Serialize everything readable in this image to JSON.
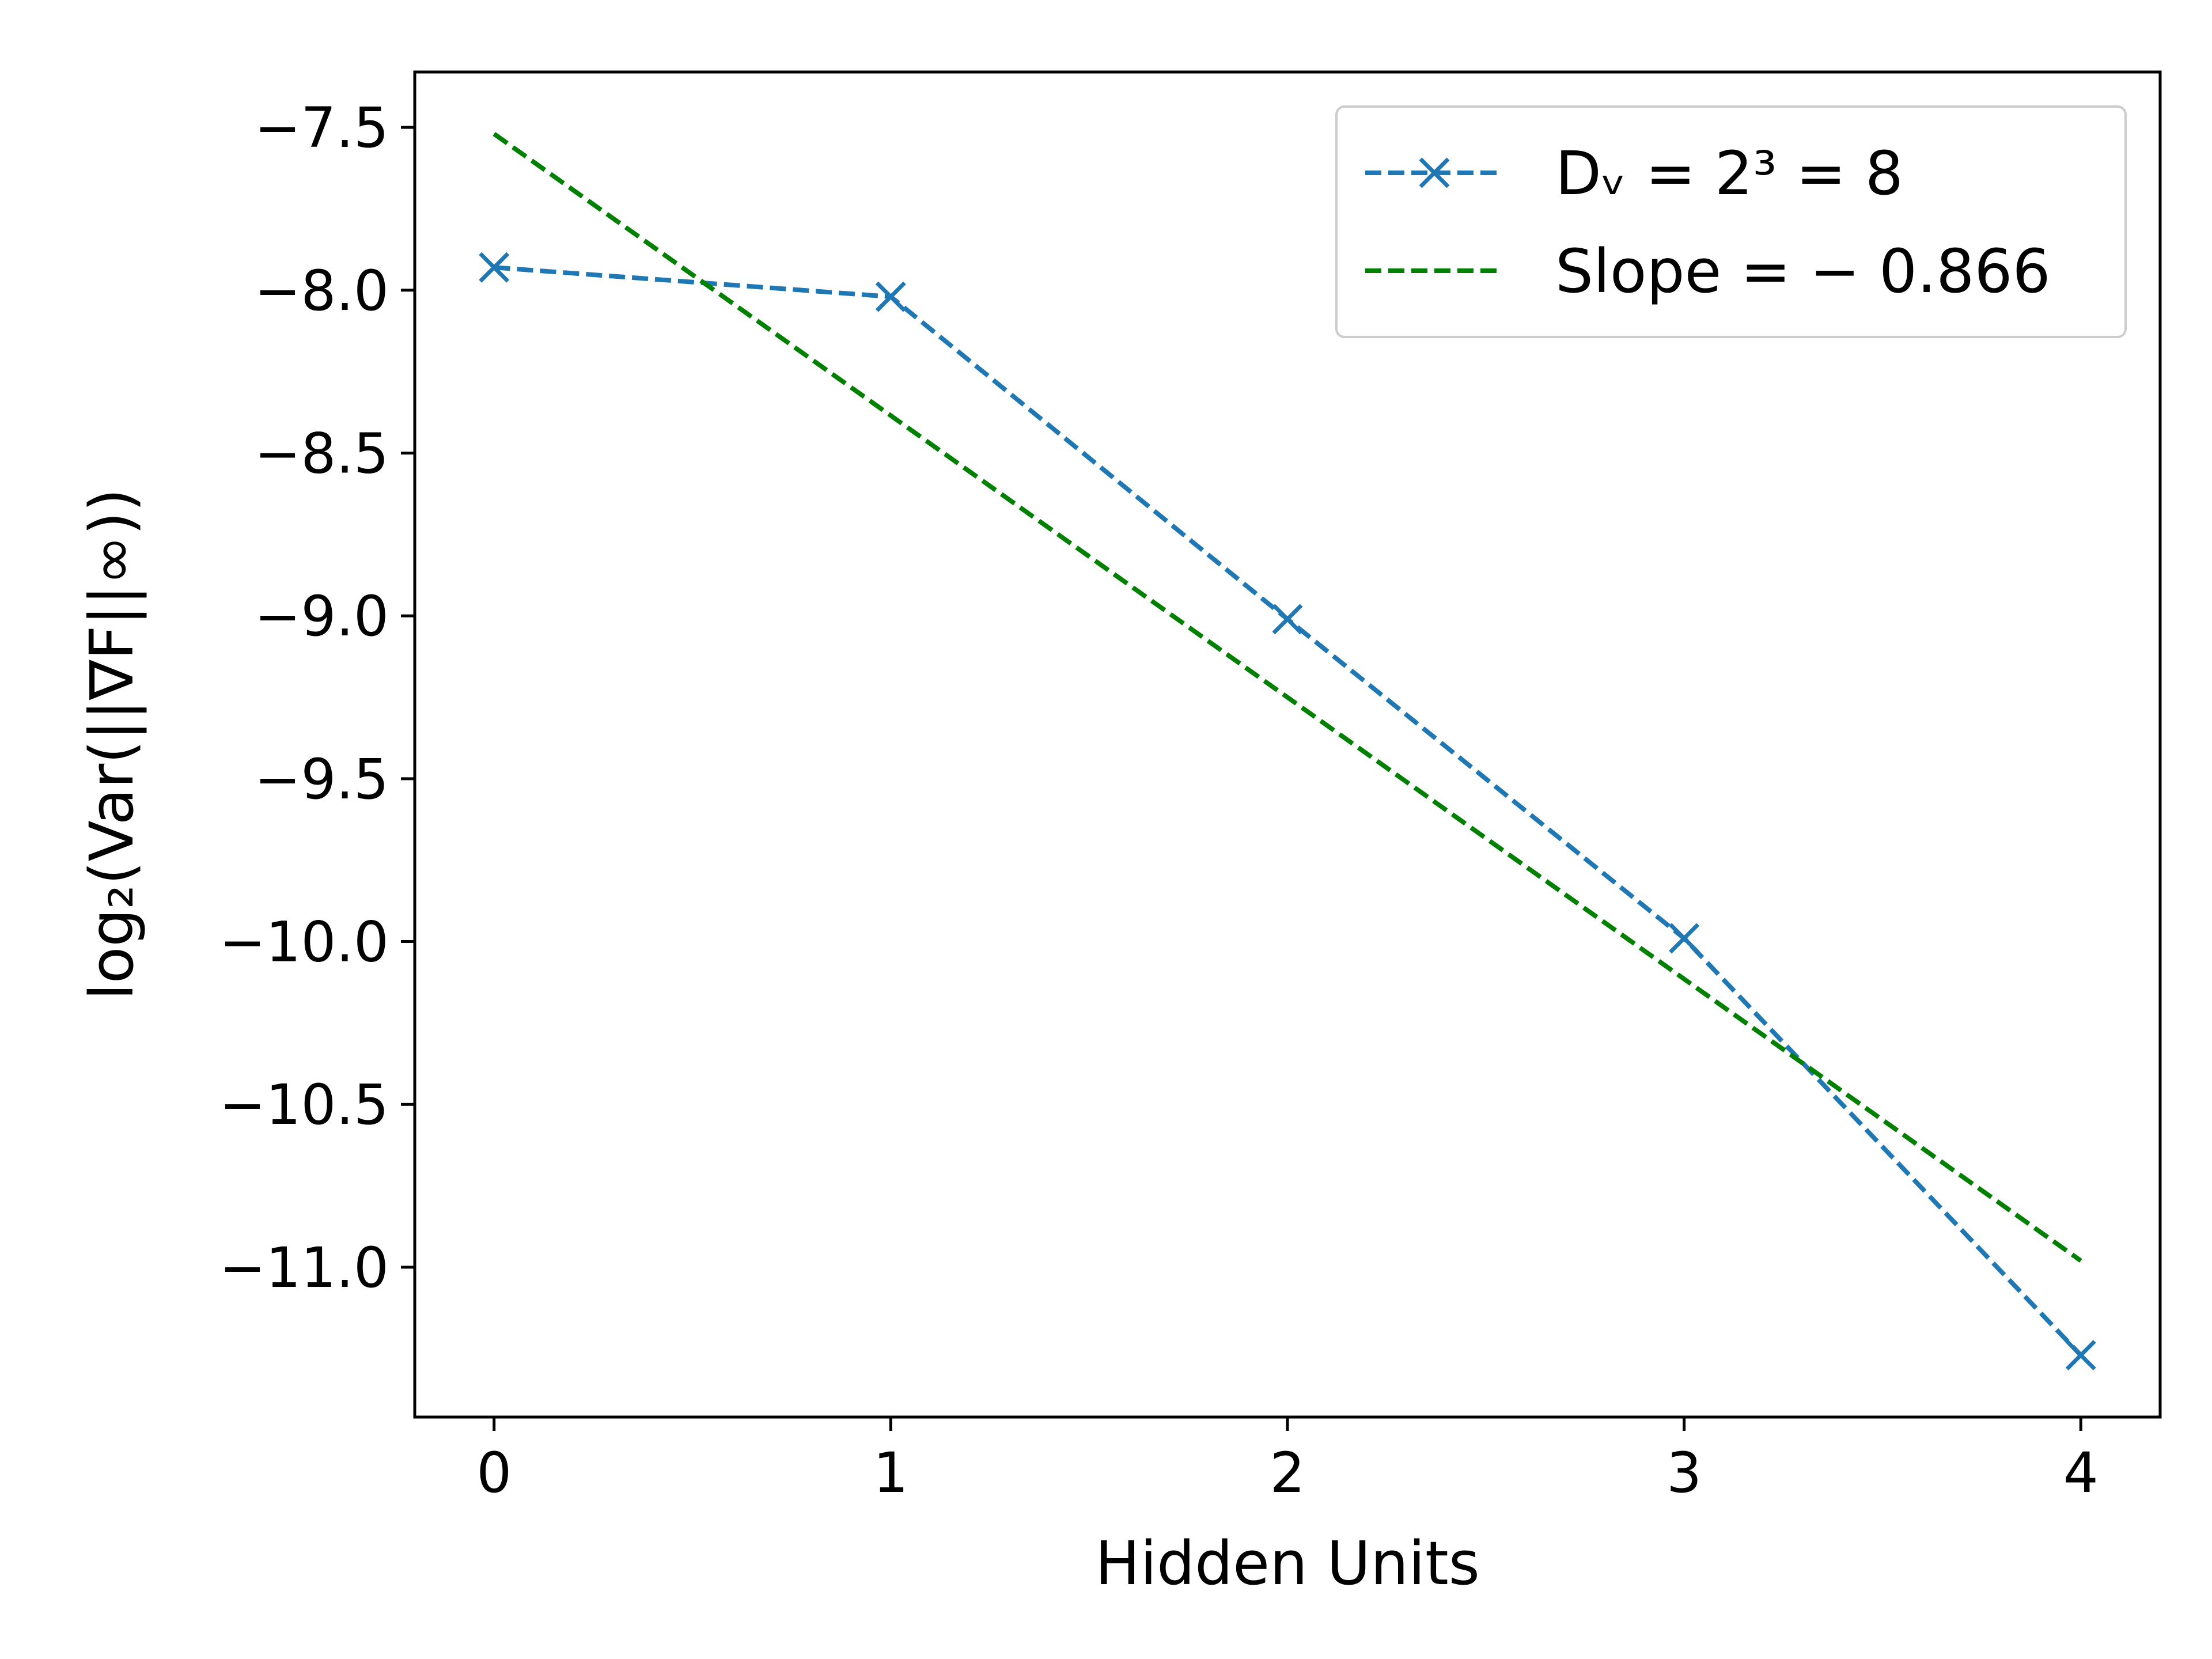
{
  "chart_data": {
    "type": "line",
    "xlabel": "Hidden Units",
    "ylabel": "log₂(Var(||∇F||∞))",
    "x_ticks": [
      "0",
      "1",
      "2",
      "3",
      "4"
    ],
    "y_ticks": [
      "−7.5",
      "−8.0",
      "−8.5",
      "−9.0",
      "−9.5",
      "−10.0",
      "−10.5",
      "−11.0"
    ],
    "y_tick_values": [
      -7.5,
      -8.0,
      -8.5,
      -9.0,
      -9.5,
      -10.0,
      -10.5,
      -11.0
    ],
    "xlim": [
      -0.2,
      4.2
    ],
    "ylim": [
      -11.46,
      -7.33
    ],
    "grid": false,
    "legend_position": "top-right",
    "series": [
      {
        "name": "D_v = 2³ = 8",
        "legend_label": "Dᵥ = 2³ = 8",
        "color": "#1f77b4",
        "line_style": "dashed",
        "marker": "x",
        "x": [
          0,
          1,
          2,
          3,
          4
        ],
        "y": [
          -7.93,
          -8.02,
          -9.01,
          -9.99,
          -11.27
        ]
      },
      {
        "name": "Slope = −0.866",
        "legend_label": "Slope = − 0.866",
        "color": "#008000",
        "line_style": "dashed",
        "marker": "none",
        "x": [
          0,
          4
        ],
        "y": [
          -7.52,
          -10.98
        ]
      }
    ]
  }
}
